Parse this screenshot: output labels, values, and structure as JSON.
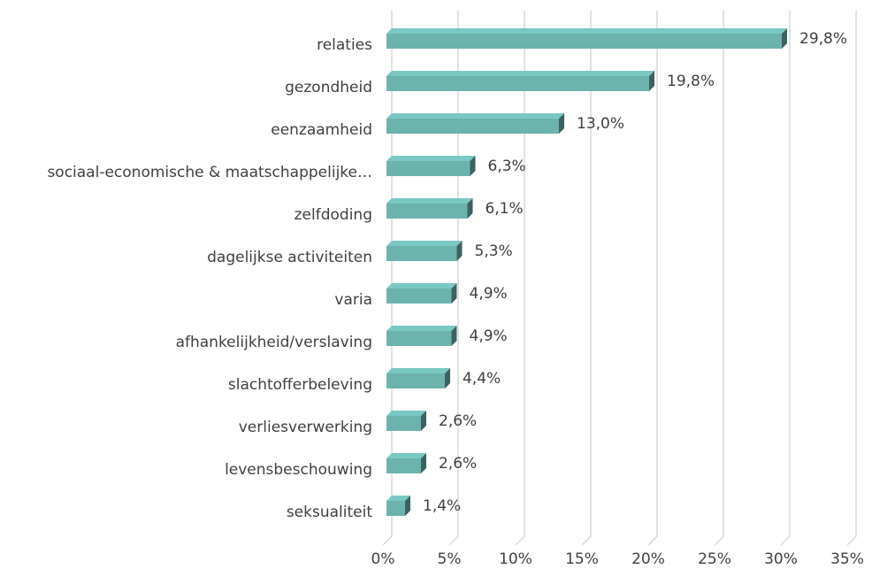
{
  "chart_data": {
    "type": "bar",
    "orientation": "horizontal",
    "categories": [
      "relaties",
      "gezondheid",
      "eenzaamheid",
      "sociaal-economische & maatschappelijke…",
      "zelfdoding",
      "dagelijkse activiteiten",
      "varia",
      "afhankelijkheid/verslaving",
      "slachtofferbeleving",
      "verliesverwerking",
      "levensbeschouwing",
      "seksualiteit"
    ],
    "values": [
      29.8,
      19.8,
      13.0,
      6.3,
      6.1,
      5.3,
      4.9,
      4.9,
      4.4,
      2.6,
      2.6,
      1.4
    ],
    "value_labels": [
      "29,8%",
      "19,8%",
      "13,0%",
      "6,3%",
      "6,1%",
      "5,3%",
      "4,9%",
      "4,9%",
      "4,4%",
      "2,6%",
      "2,6%",
      "1,4%"
    ],
    "color": "#6cb3ae",
    "xlim": [
      0,
      35
    ],
    "xticks": [
      {
        "value": 0,
        "label": "0%"
      },
      {
        "value": 5,
        "label": "5%"
      },
      {
        "value": 10,
        "label": "10%"
      },
      {
        "value": 15,
        "label": "15%"
      },
      {
        "value": 20,
        "label": "20%"
      },
      {
        "value": 25,
        "label": "25%"
      },
      {
        "value": 30,
        "label": "30%"
      },
      {
        "value": 35,
        "label": "35%"
      }
    ],
    "grid": true
  }
}
